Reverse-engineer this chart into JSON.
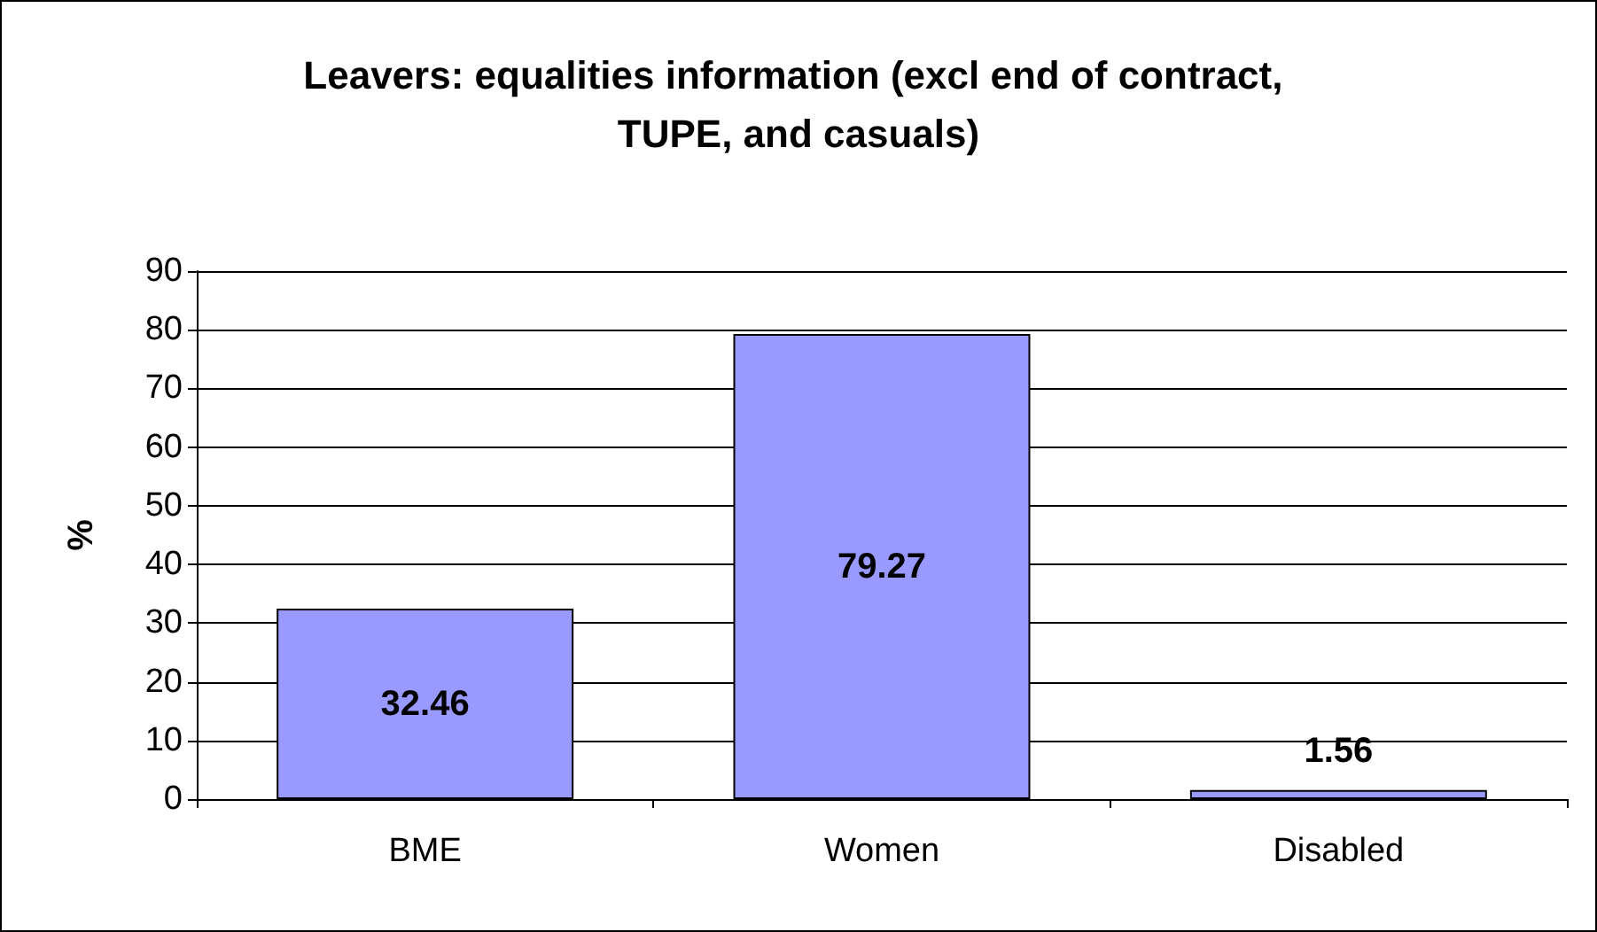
{
  "chart_data": {
    "type": "bar",
    "title": "Leavers: equalities information (excl end of contract, TUPE, and casuals)",
    "ylabel": "%",
    "categories": [
      "BME",
      "Women",
      "Disabled"
    ],
    "values": [
      32.46,
      79.27,
      1.56
    ],
    "color": "#9999ff",
    "ylim": [
      0,
      90
    ],
    "yticks": [
      0,
      10,
      20,
      30,
      40,
      50,
      60,
      70,
      80,
      90
    ],
    "grid": "y",
    "data_labels": true
  }
}
